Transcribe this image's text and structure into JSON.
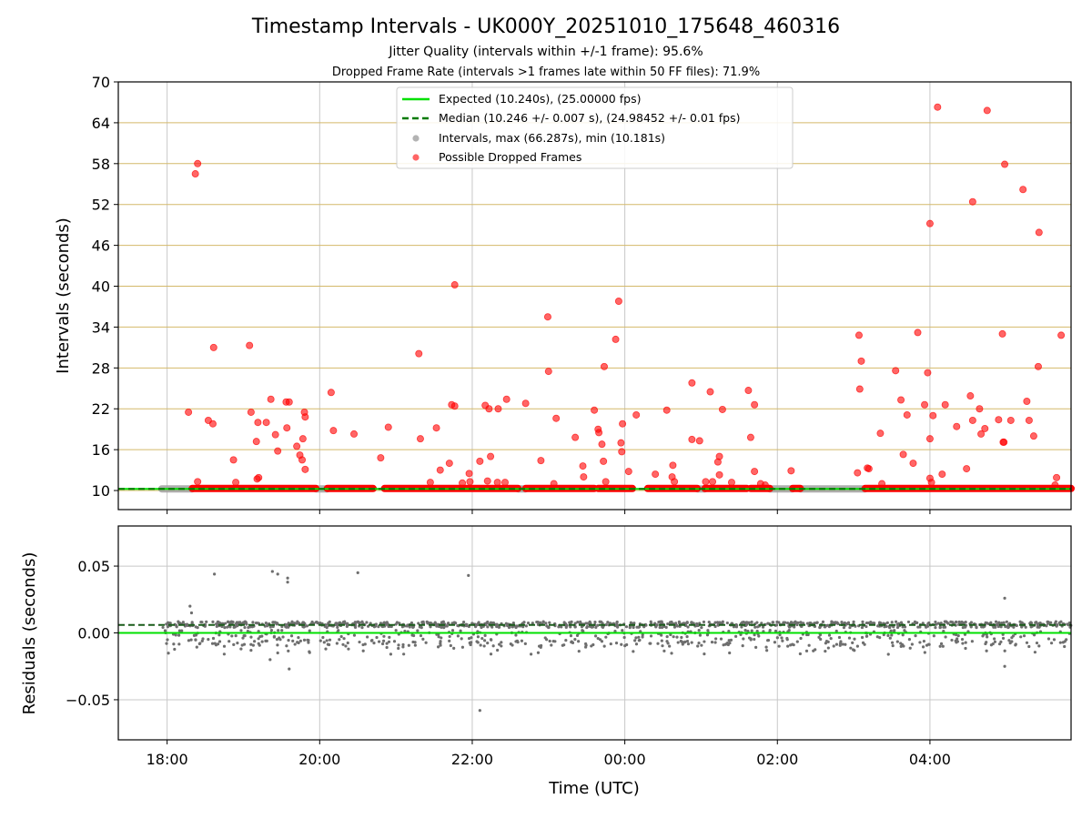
{
  "chart_data": [
    {
      "type": "scatter",
      "panel": "intervals",
      "title": "Timestamp Intervals - UK000Y_20251010_175648_460316",
      "subtitle_1": "Jitter Quality (intervals within +/-1 frame): 95.6%",
      "subtitle_2": "Dropped Frame Rate (intervals >1 frames late within 50 FF files): 71.9%",
      "xlabel": "",
      "ylabel": "Intervals (seconds)",
      "xlim_hours": [
        17.36,
        29.85
      ],
      "ylim": [
        7.2,
        70
      ],
      "yticks": [
        10,
        16,
        22,
        28,
        34,
        40,
        46,
        52,
        58,
        64,
        70
      ],
      "ytick_labels": [
        "10",
        "16",
        "22",
        "28",
        "34",
        "40",
        "46",
        "52",
        "58",
        "64",
        "70"
      ],
      "xticks_hours": [
        18,
        20,
        22,
        24,
        26,
        28
      ],
      "grid": "on",
      "colors": {
        "expected": "#00e000",
        "median": "#007a00",
        "intervals": "#a0a0a0",
        "dropped": "#ff0000",
        "hgrid": "#d4b96a",
        "vgrid": "#c8c8c8"
      },
      "legend": {
        "placement": "top-center",
        "entries": [
          "Expected (10.240s), (25.00000 fps)",
          "Median (10.246 +/- 0.007 s), (24.98452 +/- 0.01 fps)",
          "Intervals, max (66.287s), min (10.181s)",
          "Possible Dropped Frames"
        ]
      },
      "expected_interval": 10.24,
      "median_interval": 10.246,
      "baseline_dropped_value": 10.3,
      "baseline_dropped_segments_hours": [
        [
          18.33,
          19.95
        ],
        [
          20.1,
          20.7
        ],
        [
          20.85,
          22.6
        ],
        [
          22.7,
          23.6
        ],
        [
          23.65,
          24.1
        ],
        [
          24.3,
          24.95
        ],
        [
          25.05,
          25.6
        ],
        [
          25.65,
          25.9
        ],
        [
          26.2,
          26.3
        ],
        [
          27.15,
          29.85
        ]
      ],
      "baseline_interval_segments_hours": [
        [
          17.93,
          18.33
        ],
        [
          19.95,
          20.1
        ],
        [
          22.6,
          22.7
        ],
        [
          24.95,
          25.05
        ],
        [
          25.9,
          26.2
        ],
        [
          26.3,
          27.15
        ]
      ],
      "dropped_frames": [
        {
          "t": 18.28,
          "v": 21.5
        },
        {
          "t": 18.37,
          "v": 56.5
        },
        {
          "t": 18.4,
          "v": 58
        },
        {
          "t": 18.4,
          "v": 11.3
        },
        {
          "t": 18.54,
          "v": 20.3
        },
        {
          "t": 18.6,
          "v": 19.8
        },
        {
          "t": 18.61,
          "v": 31
        },
        {
          "t": 18.87,
          "v": 14.5
        },
        {
          "t": 18.9,
          "v": 11.2
        },
        {
          "t": 19.08,
          "v": 31.3
        },
        {
          "t": 19.1,
          "v": 21.5
        },
        {
          "t": 19.17,
          "v": 17.2
        },
        {
          "t": 19.19,
          "v": 20
        },
        {
          "t": 19.2,
          "v": 11.9
        },
        {
          "t": 19.18,
          "v": 11.7
        },
        {
          "t": 19.3,
          "v": 20
        },
        {
          "t": 19.36,
          "v": 23.4
        },
        {
          "t": 19.42,
          "v": 18.2
        },
        {
          "t": 19.45,
          "v": 15.8
        },
        {
          "t": 19.56,
          "v": 23
        },
        {
          "t": 19.6,
          "v": 23
        },
        {
          "t": 19.57,
          "v": 19.2
        },
        {
          "t": 19.7,
          "v": 16.5
        },
        {
          "t": 19.74,
          "v": 15.2
        },
        {
          "t": 19.77,
          "v": 14.5
        },
        {
          "t": 19.78,
          "v": 17.6
        },
        {
          "t": 19.8,
          "v": 21.5
        },
        {
          "t": 19.81,
          "v": 20.8
        },
        {
          "t": 19.81,
          "v": 13.1
        },
        {
          "t": 20.15,
          "v": 24.4
        },
        {
          "t": 20.18,
          "v": 18.8
        },
        {
          "t": 20.45,
          "v": 18.3
        },
        {
          "t": 20.8,
          "v": 14.8
        },
        {
          "t": 20.9,
          "v": 19.3
        },
        {
          "t": 21.3,
          "v": 30.1
        },
        {
          "t": 21.32,
          "v": 17.6
        },
        {
          "t": 21.45,
          "v": 11.2
        },
        {
          "t": 21.53,
          "v": 19.2
        },
        {
          "t": 21.58,
          "v": 13
        },
        {
          "t": 21.7,
          "v": 14
        },
        {
          "t": 21.73,
          "v": 22.6
        },
        {
          "t": 21.77,
          "v": 22.4
        },
        {
          "t": 21.77,
          "v": 40.2
        },
        {
          "t": 21.87,
          "v": 11.1
        },
        {
          "t": 21.96,
          "v": 12.5
        },
        {
          "t": 21.97,
          "v": 11.3
        },
        {
          "t": 22.1,
          "v": 14.3
        },
        {
          "t": 22.17,
          "v": 22.5
        },
        {
          "t": 22.22,
          "v": 22
        },
        {
          "t": 22.24,
          "v": 15
        },
        {
          "t": 22.2,
          "v": 11.4
        },
        {
          "t": 22.34,
          "v": 22
        },
        {
          "t": 22.45,
          "v": 23.4
        },
        {
          "t": 22.33,
          "v": 11.2
        },
        {
          "t": 22.43,
          "v": 11.2
        },
        {
          "t": 22.7,
          "v": 22.8
        },
        {
          "t": 22.9,
          "v": 14.4
        },
        {
          "t": 23.0,
          "v": 27.5
        },
        {
          "t": 22.99,
          "v": 35.5
        },
        {
          "t": 23.1,
          "v": 20.6
        },
        {
          "t": 23.07,
          "v": 11
        },
        {
          "t": 23.35,
          "v": 17.8
        },
        {
          "t": 23.45,
          "v": 13.6
        },
        {
          "t": 23.46,
          "v": 12
        },
        {
          "t": 23.6,
          "v": 21.8
        },
        {
          "t": 23.65,
          "v": 19
        },
        {
          "t": 23.66,
          "v": 18.5
        },
        {
          "t": 23.7,
          "v": 16.8
        },
        {
          "t": 23.72,
          "v": 14.3
        },
        {
          "t": 23.73,
          "v": 28.2
        },
        {
          "t": 23.75,
          "v": 11.3
        },
        {
          "t": 23.88,
          "v": 32.2
        },
        {
          "t": 23.92,
          "v": 37.8
        },
        {
          "t": 23.95,
          "v": 17
        },
        {
          "t": 23.96,
          "v": 15.7
        },
        {
          "t": 23.97,
          "v": 19.8
        },
        {
          "t": 24.05,
          "v": 12.8
        },
        {
          "t": 24.15,
          "v": 21.1
        },
        {
          "t": 24.4,
          "v": 12.4
        },
        {
          "t": 24.55,
          "v": 21.8
        },
        {
          "t": 24.63,
          "v": 13.7
        },
        {
          "t": 24.62,
          "v": 12
        },
        {
          "t": 24.65,
          "v": 11.3
        },
        {
          "t": 24.88,
          "v": 25.8
        },
        {
          "t": 24.88,
          "v": 17.5
        },
        {
          "t": 24.98,
          "v": 17.3
        },
        {
          "t": 25.06,
          "v": 11.3
        },
        {
          "t": 25.12,
          "v": 24.5
        },
        {
          "t": 25.15,
          "v": 11.3
        },
        {
          "t": 25.22,
          "v": 14.2
        },
        {
          "t": 25.24,
          "v": 15
        },
        {
          "t": 25.28,
          "v": 21.9
        },
        {
          "t": 25.24,
          "v": 12.3
        },
        {
          "t": 25.4,
          "v": 11.2
        },
        {
          "t": 25.62,
          "v": 24.7
        },
        {
          "t": 25.65,
          "v": 17.8
        },
        {
          "t": 25.7,
          "v": 22.6
        },
        {
          "t": 25.7,
          "v": 12.8
        },
        {
          "t": 25.78,
          "v": 11
        },
        {
          "t": 25.84,
          "v": 10.8
        },
        {
          "t": 26.18,
          "v": 12.9
        },
        {
          "t": 27.07,
          "v": 32.8
        },
        {
          "t": 27.08,
          "v": 24.9
        },
        {
          "t": 27.1,
          "v": 29
        },
        {
          "t": 27.05,
          "v": 12.6
        },
        {
          "t": 27.18,
          "v": 13.3
        },
        {
          "t": 27.2,
          "v": 13.2
        },
        {
          "t": 27.35,
          "v": 18.4
        },
        {
          "t": 27.37,
          "v": 11
        },
        {
          "t": 27.55,
          "v": 27.6
        },
        {
          "t": 27.62,
          "v": 23.3
        },
        {
          "t": 27.65,
          "v": 15.3
        },
        {
          "t": 27.7,
          "v": 21.1
        },
        {
          "t": 27.78,
          "v": 14
        },
        {
          "t": 27.84,
          "v": 33.2
        },
        {
          "t": 27.93,
          "v": 22.6
        },
        {
          "t": 27.97,
          "v": 27.3
        },
        {
          "t": 28.0,
          "v": 17.6
        },
        {
          "t": 28.04,
          "v": 21
        },
        {
          "t": 28.0,
          "v": 11.8
        },
        {
          "t": 28.02,
          "v": 11.2
        },
        {
          "t": 28.0,
          "v": 49.2
        },
        {
          "t": 28.1,
          "v": 66.3
        },
        {
          "t": 28.16,
          "v": 12.4
        },
        {
          "t": 28.2,
          "v": 22.6
        },
        {
          "t": 28.35,
          "v": 19.4
        },
        {
          "t": 28.48,
          "v": 13.2
        },
        {
          "t": 28.53,
          "v": 23.9
        },
        {
          "t": 28.56,
          "v": 20.3
        },
        {
          "t": 28.56,
          "v": 52.4
        },
        {
          "t": 28.65,
          "v": 22
        },
        {
          "t": 28.67,
          "v": 18.3
        },
        {
          "t": 28.72,
          "v": 19.1
        },
        {
          "t": 28.75,
          "v": 65.8
        },
        {
          "t": 28.9,
          "v": 20.4
        },
        {
          "t": 28.95,
          "v": 33
        },
        {
          "t": 28.96,
          "v": 17.1
        },
        {
          "t": 28.97,
          "v": 17.1
        },
        {
          "t": 28.98,
          "v": 57.9
        },
        {
          "t": 29.06,
          "v": 20.3
        },
        {
          "t": 29.22,
          "v": 54.2
        },
        {
          "t": 29.27,
          "v": 23.1
        },
        {
          "t": 29.3,
          "v": 20.3
        },
        {
          "t": 29.36,
          "v": 18
        },
        {
          "t": 29.42,
          "v": 28.2
        },
        {
          "t": 29.43,
          "v": 47.9
        },
        {
          "t": 29.66,
          "v": 11.9
        },
        {
          "t": 29.72,
          "v": 32.8
        },
        {
          "t": 29.64,
          "v": 10.8
        }
      ]
    },
    {
      "type": "scatter",
      "panel": "residuals",
      "xlabel": "Time (UTC)",
      "ylabel": "Residuals (seconds)",
      "xlim_hours": [
        17.36,
        29.85
      ],
      "ylim": [
        -0.08,
        0.08
      ],
      "yticks": [
        -0.05,
        0.0,
        0.05
      ],
      "ytick_labels": [
        "−0.05",
        "0.00",
        "0.05"
      ],
      "xticks_hours": [
        18,
        20,
        22,
        24,
        26,
        28
      ],
      "xtick_labels": [
        "18:00",
        "20:00",
        "22:00",
        "00:00",
        "02:00",
        "04:00"
      ],
      "grid": "on",
      "expected_residual": 0.0,
      "median_residual": 0.006,
      "residual_band": {
        "t_start": 17.93,
        "t_end": 29.85,
        "center": 0.006,
        "spread": 0.0045
      },
      "outliers": [
        {
          "t": 18.3,
          "v": 0.02
        },
        {
          "t": 18.32,
          "v": 0.015
        },
        {
          "t": 18.62,
          "v": 0.044
        },
        {
          "t": 19.38,
          "v": 0.046
        },
        {
          "t": 19.45,
          "v": 0.044
        },
        {
          "t": 19.58,
          "v": 0.041
        },
        {
          "t": 19.58,
          "v": 0.038
        },
        {
          "t": 20.5,
          "v": 0.045
        },
        {
          "t": 21.95,
          "v": 0.043
        },
        {
          "t": 19.1,
          "v": -0.013
        },
        {
          "t": 19.35,
          "v": -0.02
        },
        {
          "t": 19.45,
          "v": -0.015
        },
        {
          "t": 19.6,
          "v": -0.027
        },
        {
          "t": 19.2,
          "v": -0.008
        },
        {
          "t": 20.08,
          "v": -0.012
        },
        {
          "t": 22.1,
          "v": -0.058
        },
        {
          "t": 28.98,
          "v": 0.026
        },
        {
          "t": 28.98,
          "v": -0.025
        },
        {
          "t": 18.75,
          "v": -0.01
        },
        {
          "t": 19.75,
          "v": -0.006
        }
      ]
    }
  ]
}
